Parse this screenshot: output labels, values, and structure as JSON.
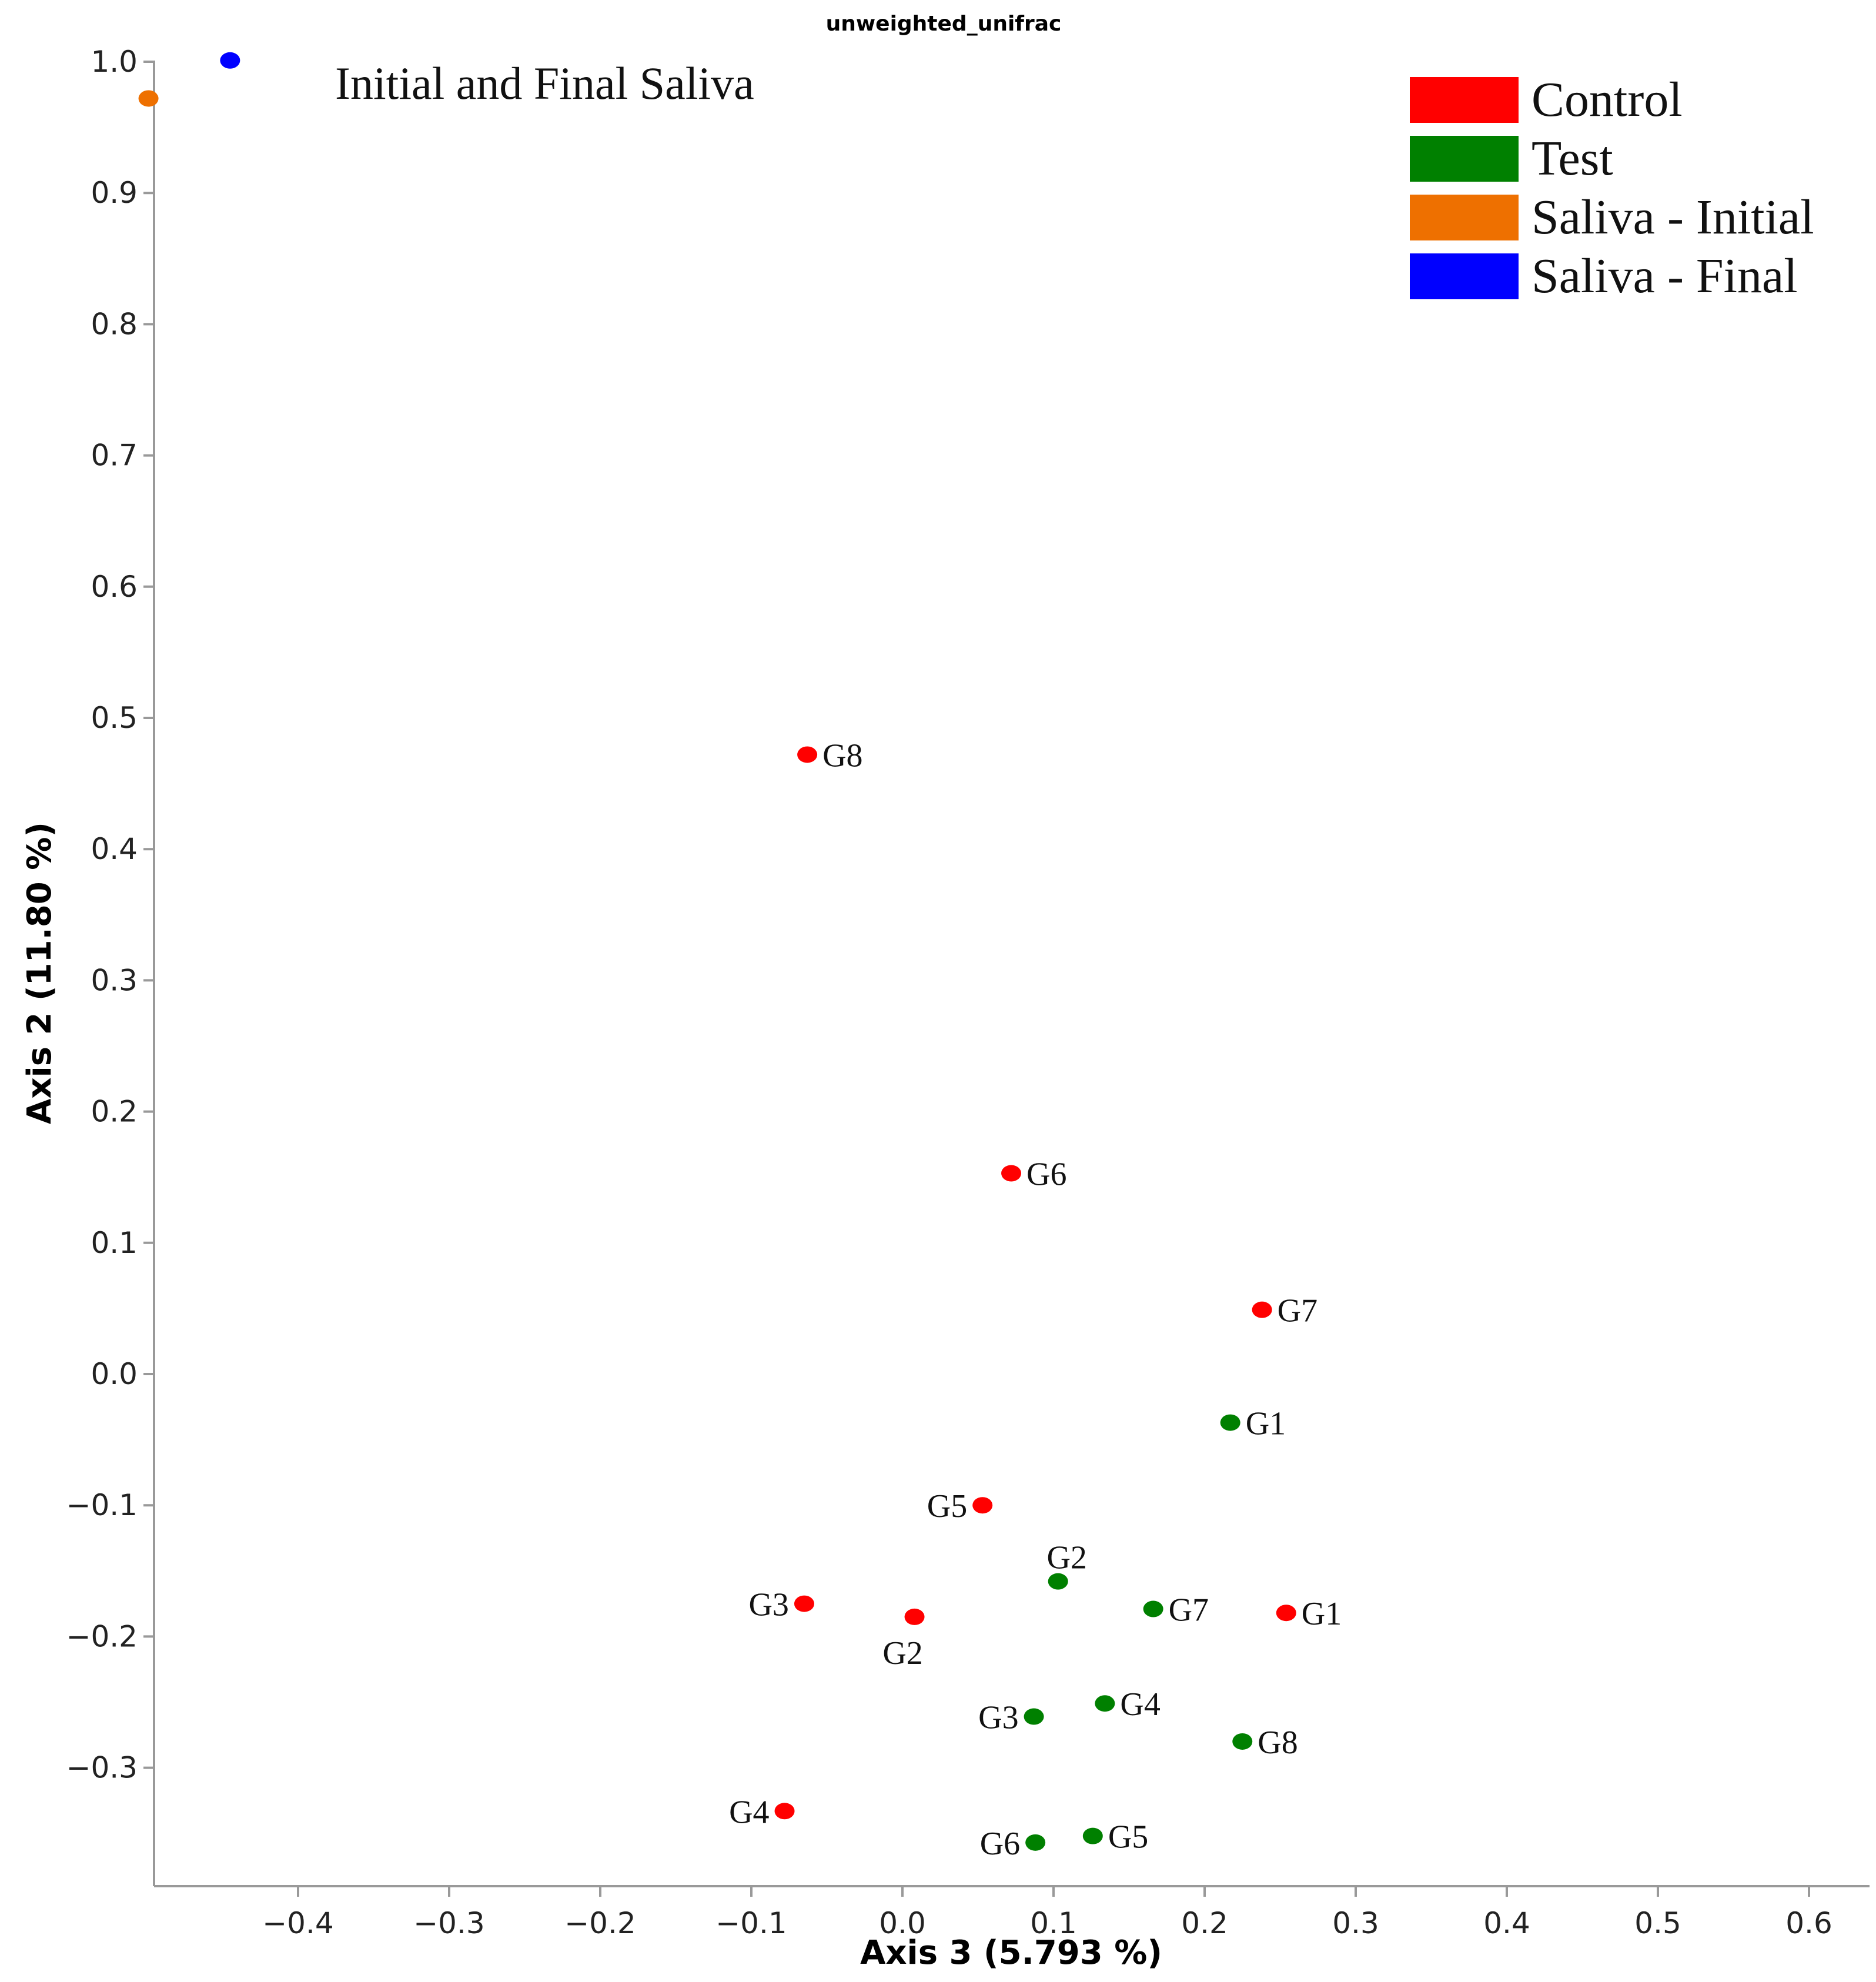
{
  "chart_data": {
    "type": "scatter",
    "title": "unweighted_unifrac",
    "xlabel": "Axis 3 (5.793 %)",
    "ylabel": "Axis 2 (11.80 %)",
    "xlim": [
      -0.5,
      0.64
    ],
    "ylim": [
      -0.39,
      1.0
    ],
    "xticks": [
      "−0.4",
      "−0.3",
      "−0.2",
      "−0.1",
      "0.0",
      "0.1",
      "0.2",
      "0.3",
      "0.4",
      "0.5",
      "0.6"
    ],
    "xtick_values": [
      -0.4,
      -0.3,
      -0.2,
      -0.1,
      0.0,
      0.1,
      0.2,
      0.3,
      0.4,
      0.5,
      0.6
    ],
    "yticks": [
      "1.0",
      "0.9",
      "0.8",
      "0.7",
      "0.6",
      "0.5",
      "0.4",
      "0.3",
      "0.2",
      "0.1",
      "0.0",
      "−0.1",
      "−0.2",
      "−0.3"
    ],
    "ytick_values": [
      1.0,
      0.9,
      0.8,
      0.7,
      0.6,
      0.5,
      0.4,
      0.3,
      0.2,
      0.1,
      0.0,
      -0.1,
      -0.2,
      -0.3
    ],
    "annotation": "Initial and Final Saliva",
    "legend_position": "top-right",
    "series": [
      {
        "name": "Control",
        "color": "#ff0000",
        "points": [
          {
            "label": "G8",
            "x": -0.063,
            "y": 0.472,
            "label_side": "right"
          },
          {
            "label": "G6",
            "x": 0.072,
            "y": 0.153,
            "label_side": "right"
          },
          {
            "label": "G7",
            "x": 0.238,
            "y": 0.049,
            "label_side": "right"
          },
          {
            "label": "G5",
            "x": 0.053,
            "y": -0.1,
            "label_side": "left"
          },
          {
            "label": "G3",
            "x": -0.065,
            "y": -0.175,
            "label_side": "left"
          },
          {
            "label": "G2",
            "x": 0.008,
            "y": -0.185,
            "label_side": "below"
          },
          {
            "label": "G1",
            "x": 0.254,
            "y": -0.182,
            "label_side": "right"
          },
          {
            "label": "G4",
            "x": -0.078,
            "y": -0.333,
            "label_side": "left"
          }
        ]
      },
      {
        "name": "Test",
        "color": "#008000",
        "points": [
          {
            "label": "G1",
            "x": 0.217,
            "y": -0.037,
            "label_side": "right"
          },
          {
            "label": "G2",
            "x": 0.103,
            "y": -0.158,
            "label_side": "above"
          },
          {
            "label": "G7",
            "x": 0.166,
            "y": -0.179,
            "label_side": "right"
          },
          {
            "label": "G4",
            "x": 0.134,
            "y": -0.251,
            "label_side": "right"
          },
          {
            "label": "G3",
            "x": 0.087,
            "y": -0.261,
            "label_side": "left"
          },
          {
            "label": "G8",
            "x": 0.225,
            "y": -0.28,
            "label_side": "right"
          },
          {
            "label": "G5",
            "x": 0.126,
            "y": -0.352,
            "label_side": "right"
          },
          {
            "label": "G6",
            "x": 0.088,
            "y": -0.357,
            "label_side": "left"
          }
        ]
      },
      {
        "name": "Saliva - Initial",
        "color": "#ee7000",
        "points": [
          {
            "label": "",
            "x": -0.499,
            "y": 0.972,
            "label_side": "none"
          }
        ]
      },
      {
        "name": "Saliva - Final",
        "color": "#0000ff",
        "points": [
          {
            "label": "",
            "x": -0.445,
            "y": 1.001,
            "label_side": "none"
          }
        ]
      }
    ]
  }
}
